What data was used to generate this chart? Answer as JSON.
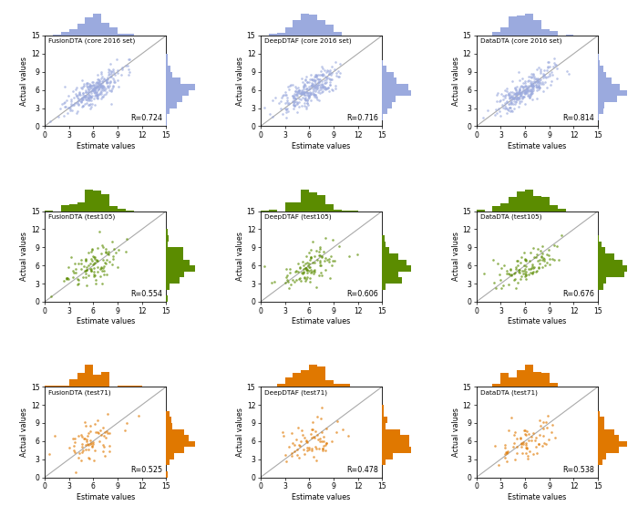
{
  "panels": [
    {
      "title": "FusionDTA (core 2016 set)",
      "R": "R=0.724",
      "color": "#9BAADE",
      "row": 0,
      "col": 0,
      "n_points": 290,
      "seed": 10
    },
    {
      "title": "DeepDTAF (core 2016 set)",
      "R": "R=0.716",
      "color": "#9BAADE",
      "row": 0,
      "col": 1,
      "n_points": 290,
      "seed": 20
    },
    {
      "title": "DataDTA (core 2016 set)",
      "R": "R=0.814",
      "color": "#9BAADE",
      "row": 0,
      "col": 2,
      "n_points": 290,
      "seed": 30
    },
    {
      "title": "FusionDTA (test105)",
      "R": "R=0.554",
      "color": "#5b8c00",
      "row": 1,
      "col": 0,
      "n_points": 105,
      "seed": 40
    },
    {
      "title": "DeepDTAF (test105)",
      "R": "R=0.606",
      "color": "#5b8c00",
      "row": 1,
      "col": 1,
      "n_points": 105,
      "seed": 50
    },
    {
      "title": "DataDTA (test105)",
      "R": "R=0.676",
      "color": "#5b8c00",
      "row": 1,
      "col": 2,
      "n_points": 105,
      "seed": 60
    },
    {
      "title": "FusionDTA (test71)",
      "R": "R=0.525",
      "color": "#e07800",
      "row": 2,
      "col": 0,
      "n_points": 71,
      "seed": 70
    },
    {
      "title": "DeepDTAF (test71)",
      "R": "R=0.478",
      "color": "#e07800",
      "row": 2,
      "col": 1,
      "n_points": 71,
      "seed": 80
    },
    {
      "title": "DataDTA (test71)",
      "R": "R=0.538",
      "color": "#e07800",
      "row": 2,
      "col": 2,
      "n_points": 71,
      "seed": 90
    }
  ],
  "R_values": [
    0.724,
    0.716,
    0.814,
    0.554,
    0.606,
    0.676,
    0.525,
    0.478,
    0.538
  ],
  "xlim": [
    0,
    15
  ],
  "ylim": [
    0,
    15
  ],
  "xticks": [
    0,
    3,
    6,
    9,
    12,
    15
  ],
  "yticks": [
    0,
    3,
    6,
    9,
    12,
    15
  ],
  "xlabel": "Estimate values",
  "ylabel": "Actual values",
  "scatter_alpha": 0.65,
  "scatter_size": 3.5,
  "hist_alpha": 1.0,
  "background_color": "#ffffff"
}
